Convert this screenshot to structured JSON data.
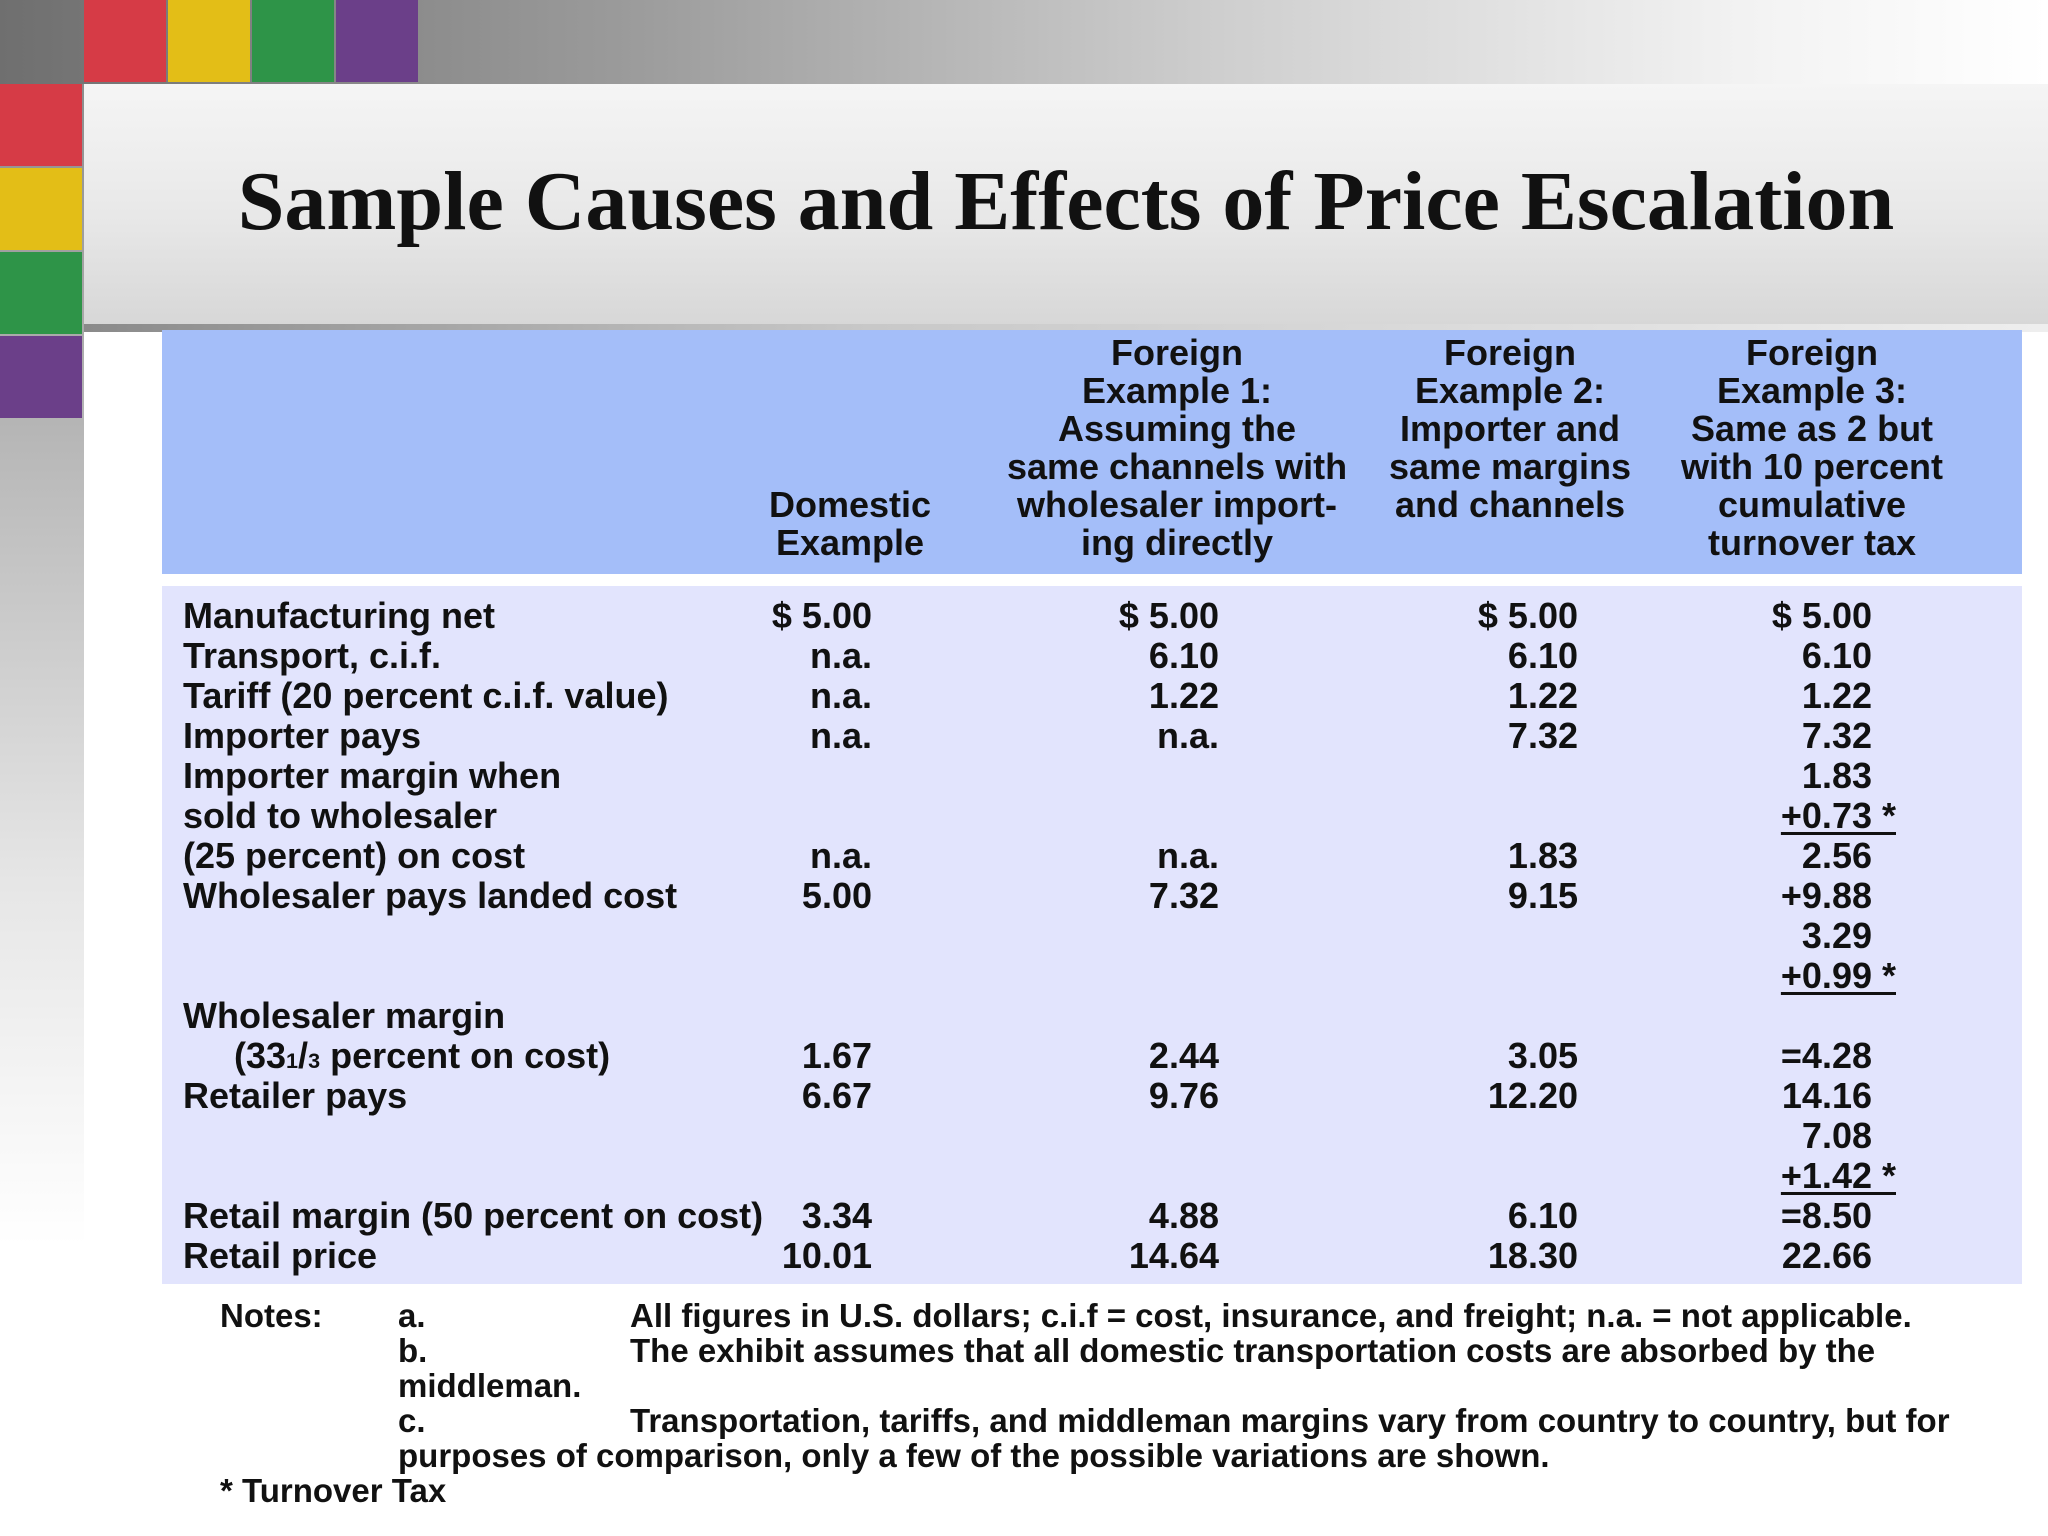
{
  "slide": {
    "title": "Sample Causes and Effects of Price Escalation"
  },
  "table": {
    "headers": {
      "domestic": [
        "Domestic",
        "Example"
      ],
      "foreign1": [
        "Foreign",
        "Example 1:",
        "Assuming the",
        "same channels with",
        "wholesaler import-",
        "ing directly"
      ],
      "foreign2": [
        "Foreign",
        "Example 2:",
        "Importer and",
        "same margins",
        "and channels"
      ],
      "foreign3": [
        "Foreign",
        "Example 3:",
        "Same as 2 but",
        "with 10 percent",
        "cumulative",
        "turnover tax"
      ]
    },
    "rows": [
      {
        "label": "Manufacturing net",
        "domestic": "$ 5.00",
        "foreign1": "$ 5.00",
        "foreign2": "$ 5.00",
        "foreign3": "$ 5.00"
      },
      {
        "label": "Transport, c.i.f.",
        "domestic": "n.a.",
        "foreign1": "6.10",
        "foreign2": "6.10",
        "foreign3": "6.10"
      },
      {
        "label": "Tariff (20 percent c.i.f. value)",
        "domestic": "n.a.",
        "foreign1": "1.22",
        "foreign2": "1.22",
        "foreign3": "1.22"
      },
      {
        "label": "Importer pays",
        "domestic": "n.a.",
        "foreign1": "n.a.",
        "foreign2": "7.32",
        "foreign3": "7.32"
      },
      {
        "label": "Importer margin when",
        "domestic": "",
        "foreign1": "",
        "foreign2": "",
        "foreign3": "1.83"
      },
      {
        "label": "sold to wholesaler",
        "domestic": "",
        "foreign1": "",
        "foreign2": "",
        "foreign3": "+0.73 *"
      },
      {
        "label": "(25 percent) on cost",
        "domestic": "n.a.",
        "foreign1": "n.a.",
        "foreign2": "1.83",
        "foreign3": "2.56"
      },
      {
        "label": "Wholesaler pays landed cost",
        "domestic": "5.00",
        "foreign1": "7.32",
        "foreign2": "9.15",
        "foreign3": "+9.88"
      },
      {
        "label": "",
        "domestic": "",
        "foreign1": "",
        "foreign2": "",
        "foreign3": "3.29"
      },
      {
        "label": "",
        "domestic": "",
        "foreign1": "",
        "foreign2": "",
        "foreign3": "+0.99 *"
      },
      {
        "label": "Wholesaler margin",
        "domestic": "",
        "foreign1": "",
        "foreign2": "",
        "foreign3": ""
      },
      {
        "label_pre": "(33",
        "label_frac_num": "1",
        "label_frac_den": "3",
        "label_post": " percent on cost)",
        "domestic": "1.67",
        "foreign1": "2.44",
        "foreign2": "3.05",
        "foreign3": "=4.28"
      },
      {
        "label": "Retailer pays",
        "domestic": "6.67",
        "foreign1": "9.76",
        "foreign2": "12.20",
        "foreign3": "14.16"
      },
      {
        "label": "",
        "domestic": "",
        "foreign1": "",
        "foreign2": "",
        "foreign3": "7.08"
      },
      {
        "label": "",
        "domestic": "",
        "foreign1": "",
        "foreign2": "",
        "foreign3": "+1.42 *"
      },
      {
        "label": "Retail margin (50 percent on cost)",
        "domestic": "3.34",
        "foreign1": "4.88",
        "foreign2": "6.10",
        "foreign3": "=8.50"
      },
      {
        "label": "Retail price",
        "domestic": "10.01",
        "foreign1": "14.64",
        "foreign2": "18.30",
        "foreign3": "22.66"
      }
    ]
  },
  "notes": {
    "heading": "Notes:",
    "a_letter": "a.",
    "a_text": "All figures in U.S. dollars; c.i.f = cost, insurance, and freight; n.a. = not applicable.",
    "b_letter": "b.",
    "b_text": "The exhibit assumes that all domestic transportation costs are absorbed by the",
    "b_cont": "middleman.",
    "c_letter": "c.",
    "c_text": "Transportation, tariffs, and middleman margins vary from country to country, but for",
    "c_cont": "purposes of comparison, only a few of the possible variations are shown.",
    "footnote": "* Turnover Tax"
  },
  "colors": {
    "header_bg": "#a4bef9",
    "body_bg": "#e2e4fd",
    "accent_red": "#d63b46",
    "accent_yellow": "#e3be17",
    "accent_green": "#2e9448",
    "accent_purple": "#6b3f89"
  }
}
